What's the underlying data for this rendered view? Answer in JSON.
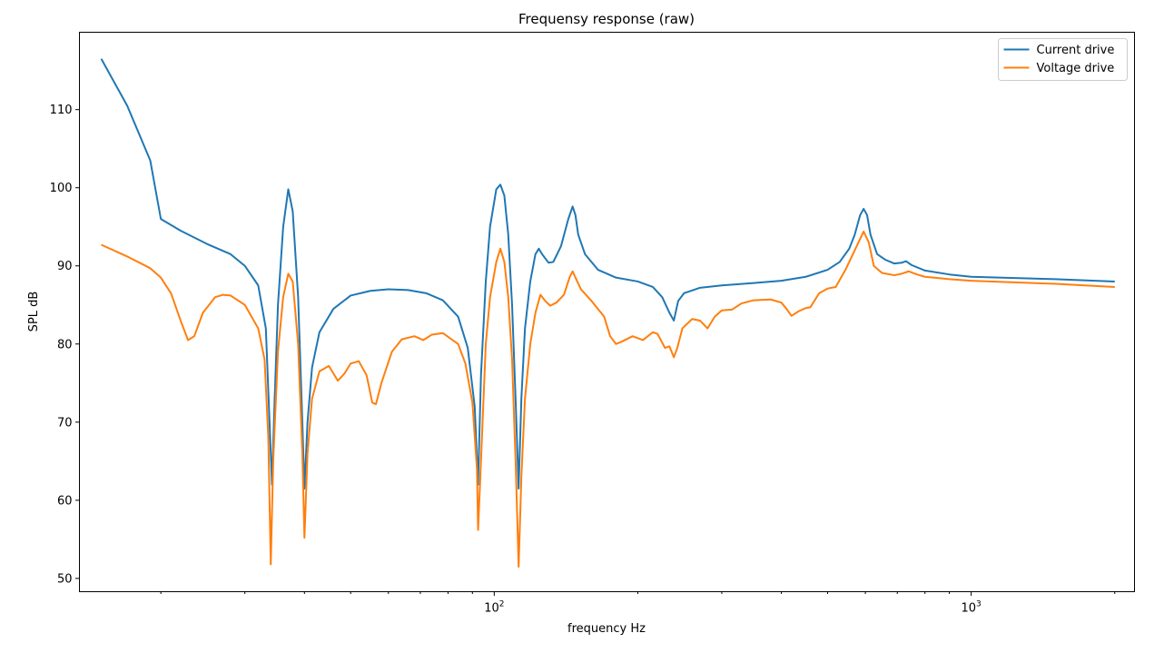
{
  "chart_data": {
    "type": "line",
    "title": "Frequensy response (raw)",
    "xlabel": "frequency Hz",
    "ylabel": "SPL dB",
    "x_scale": "log",
    "xlim": [
      13.5,
      2200
    ],
    "ylim": [
      48.3,
      119.9
    ],
    "x_ticks": [
      {
        "value": 100,
        "label": "10^2"
      },
      {
        "value": 1000,
        "label": "10^3"
      }
    ],
    "x_minor_ticks": [
      20,
      30,
      40,
      50,
      60,
      70,
      80,
      90,
      200,
      300,
      400,
      500,
      600,
      700,
      800,
      900,
      2000
    ],
    "y_ticks": [
      50,
      60,
      70,
      80,
      90,
      100,
      110
    ],
    "grid": false,
    "legend": "top-right",
    "series": [
      {
        "name": "Current drive",
        "color": "#1f77b4",
        "points": [
          [
            15,
            116.5
          ],
          [
            17,
            110.5
          ],
          [
            19,
            103.5
          ],
          [
            20,
            96
          ],
          [
            22,
            94.5
          ],
          [
            25,
            92.8
          ],
          [
            28,
            91.5
          ],
          [
            30,
            90
          ],
          [
            32,
            87.5
          ],
          [
            33.2,
            82
          ],
          [
            33.8,
            70
          ],
          [
            34.2,
            62
          ],
          [
            34.6,
            72
          ],
          [
            35.2,
            85
          ],
          [
            36.1,
            95
          ],
          [
            37,
            99.8
          ],
          [
            37.8,
            97
          ],
          [
            38.8,
            86
          ],
          [
            39.6,
            70
          ],
          [
            40,
            61.5
          ],
          [
            40.6,
            70
          ],
          [
            41.5,
            77
          ],
          [
            43,
            81.5
          ],
          [
            46,
            84.5
          ],
          [
            50,
            86.2
          ],
          [
            55,
            86.8
          ],
          [
            60,
            87
          ],
          [
            66,
            86.9
          ],
          [
            72,
            86.5
          ],
          [
            78,
            85.6
          ],
          [
            84,
            83.5
          ],
          [
            88,
            79.5
          ],
          [
            91,
            72
          ],
          [
            92.5,
            62
          ],
          [
            93.8,
            76
          ],
          [
            96,
            88
          ],
          [
            98,
            95
          ],
          [
            101,
            99.8
          ],
          [
            103,
            100.4
          ],
          [
            105,
            99
          ],
          [
            107,
            94
          ],
          [
            109,
            85
          ],
          [
            111,
            72
          ],
          [
            112.5,
            61.5
          ],
          [
            114,
            73
          ],
          [
            116,
            82
          ],
          [
            119,
            88
          ],
          [
            122,
            91.5
          ],
          [
            124,
            92.2
          ],
          [
            126,
            91.5
          ],
          [
            130,
            90.4
          ],
          [
            133,
            90.5
          ],
          [
            138,
            92.5
          ],
          [
            143,
            96
          ],
          [
            146,
            97.6
          ],
          [
            148,
            96.5
          ],
          [
            150,
            94
          ],
          [
            155,
            91.5
          ],
          [
            165,
            89.5
          ],
          [
            180,
            88.5
          ],
          [
            200,
            88
          ],
          [
            215,
            87.3
          ],
          [
            225,
            86
          ],
          [
            233,
            84
          ],
          [
            238,
            83
          ],
          [
            243,
            85.5
          ],
          [
            250,
            86.5
          ],
          [
            270,
            87.2
          ],
          [
            300,
            87.5
          ],
          [
            350,
            87.8
          ],
          [
            400,
            88.1
          ],
          [
            450,
            88.6
          ],
          [
            500,
            89.5
          ],
          [
            530,
            90.5
          ],
          [
            555,
            92.2
          ],
          [
            570,
            94
          ],
          [
            585,
            96.5
          ],
          [
            595,
            97.3
          ],
          [
            605,
            96.5
          ],
          [
            615,
            94
          ],
          [
            635,
            91.5
          ],
          [
            660,
            90.8
          ],
          [
            690,
            90.3
          ],
          [
            715,
            90.4
          ],
          [
            730,
            90.6
          ],
          [
            750,
            90.1
          ],
          [
            800,
            89.4
          ],
          [
            900,
            88.9
          ],
          [
            1000,
            88.6
          ],
          [
            1500,
            88.3
          ],
          [
            2000,
            88
          ]
        ]
      },
      {
        "name": "Voltage drive",
        "color": "#ff7f0e",
        "points": [
          [
            15,
            92.7
          ],
          [
            17,
            91.2
          ],
          [
            19,
            89.7
          ],
          [
            20,
            88.5
          ],
          [
            21,
            86.5
          ],
          [
            22,
            83
          ],
          [
            22.8,
            80.5
          ],
          [
            23.5,
            81
          ],
          [
            24.5,
            84
          ],
          [
            26,
            86
          ],
          [
            27,
            86.3
          ],
          [
            28,
            86.2
          ],
          [
            30,
            85
          ],
          [
            32,
            82
          ],
          [
            33,
            78
          ],
          [
            33.6,
            68
          ],
          [
            34,
            51.8
          ],
          [
            34.4,
            65
          ],
          [
            35.2,
            79
          ],
          [
            36.1,
            86
          ],
          [
            37,
            89
          ],
          [
            37.8,
            88
          ],
          [
            38.8,
            80
          ],
          [
            39.6,
            66
          ],
          [
            40,
            55.2
          ],
          [
            40.6,
            66
          ],
          [
            41.5,
            73
          ],
          [
            43,
            76.5
          ],
          [
            45,
            77.2
          ],
          [
            47,
            75.3
          ],
          [
            48.5,
            76.2
          ],
          [
            50,
            77.5
          ],
          [
            52,
            77.8
          ],
          [
            54,
            76
          ],
          [
            55.5,
            72.5
          ],
          [
            56.5,
            72.3
          ],
          [
            58,
            75
          ],
          [
            61,
            79
          ],
          [
            64,
            80.6
          ],
          [
            68,
            81
          ],
          [
            71,
            80.5
          ],
          [
            74,
            81.2
          ],
          [
            78,
            81.4
          ],
          [
            84,
            80
          ],
          [
            87,
            77.5
          ],
          [
            90,
            72.5
          ],
          [
            92,
            64
          ],
          [
            92.5,
            56.2
          ],
          [
            93.8,
            65
          ],
          [
            96,
            80
          ],
          [
            98,
            86
          ],
          [
            101,
            90.5
          ],
          [
            103,
            92.2
          ],
          [
            105,
            90.5
          ],
          [
            107,
            86
          ],
          [
            109,
            78
          ],
          [
            111,
            64
          ],
          [
            112.5,
            51.5
          ],
          [
            114,
            63
          ],
          [
            116,
            73
          ],
          [
            119,
            80
          ],
          [
            122,
            84
          ],
          [
            125,
            86.3
          ],
          [
            128,
            85.5
          ],
          [
            131,
            84.9
          ],
          [
            135,
            85.3
          ],
          [
            140,
            86.3
          ],
          [
            144,
            88.6
          ],
          [
            146,
            89.3
          ],
          [
            148,
            88.5
          ],
          [
            152,
            87
          ],
          [
            160,
            85.5
          ],
          [
            170,
            83.5
          ],
          [
            175,
            81
          ],
          [
            180,
            80
          ],
          [
            185,
            80.3
          ],
          [
            195,
            81
          ],
          [
            205,
            80.5
          ],
          [
            215,
            81.5
          ],
          [
            220,
            81.3
          ],
          [
            228,
            79.5
          ],
          [
            233,
            79.7
          ],
          [
            238,
            78.3
          ],
          [
            242,
            79.5
          ],
          [
            248,
            82
          ],
          [
            260,
            83.2
          ],
          [
            270,
            83
          ],
          [
            280,
            82
          ],
          [
            290,
            83.5
          ],
          [
            300,
            84.3
          ],
          [
            315,
            84.4
          ],
          [
            330,
            85.2
          ],
          [
            350,
            85.6
          ],
          [
            380,
            85.7
          ],
          [
            400,
            85.3
          ],
          [
            410,
            84.5
          ],
          [
            420,
            83.6
          ],
          [
            435,
            84.2
          ],
          [
            450,
            84.6
          ],
          [
            460,
            84.7
          ],
          [
            480,
            86.5
          ],
          [
            500,
            87.1
          ],
          [
            520,
            87.3
          ],
          [
            545,
            89.5
          ],
          [
            570,
            92
          ],
          [
            595,
            94.4
          ],
          [
            610,
            93
          ],
          [
            625,
            90
          ],
          [
            650,
            89.1
          ],
          [
            690,
            88.8
          ],
          [
            715,
            89
          ],
          [
            740,
            89.3
          ],
          [
            770,
            88.9
          ],
          [
            800,
            88.6
          ],
          [
            900,
            88.3
          ],
          [
            1000,
            88.1
          ],
          [
            1500,
            87.7
          ],
          [
            2000,
            87.3
          ]
        ]
      }
    ]
  }
}
